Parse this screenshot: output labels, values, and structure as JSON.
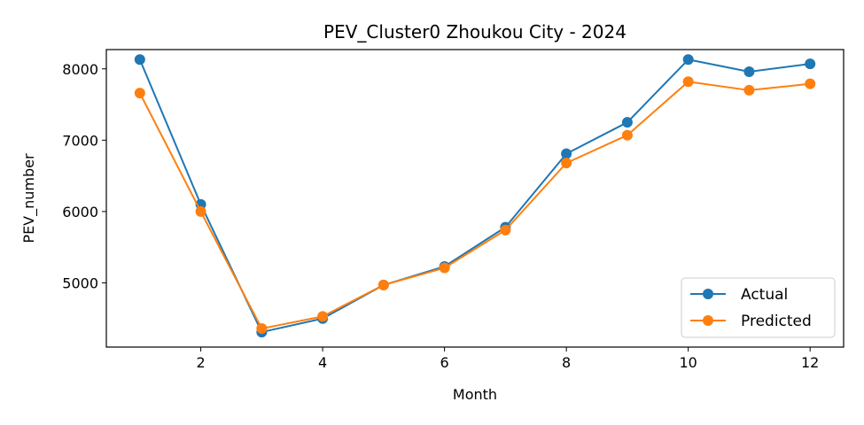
{
  "chart_data": {
    "type": "line",
    "title": "PEV_Cluster0 Zhoukou City - 2024",
    "xlabel": "Month",
    "ylabel": "PEV_number",
    "x": [
      1,
      2,
      3,
      4,
      5,
      6,
      7,
      8,
      9,
      10,
      11,
      12
    ],
    "xlim": [
      0.45,
      12.55
    ],
    "ylim": [
      4100,
      8270
    ],
    "xticks": [
      2,
      4,
      6,
      8,
      10,
      12
    ],
    "yticks": [
      5000,
      6000,
      7000,
      8000
    ],
    "grid": false,
    "legend_position": "lower right",
    "series": [
      {
        "name": "Actual",
        "color": "#1f77b4",
        "values": [
          8130,
          6100,
          4310,
          4500,
          4970,
          5230,
          5780,
          6810,
          7250,
          8130,
          7960,
          8070
        ]
      },
      {
        "name": "Predicted",
        "color": "#ff7f0e",
        "values": [
          7660,
          6000,
          4360,
          4530,
          4970,
          5210,
          5740,
          6680,
          7070,
          7820,
          7700,
          7790
        ]
      }
    ]
  }
}
